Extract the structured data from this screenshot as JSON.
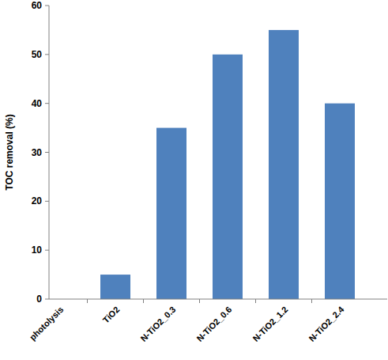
{
  "chart_data": {
    "type": "bar",
    "y_label": "TOC removal (%)",
    "categories": [
      "photolysis",
      "TiO2",
      "N-TiO2_0.3",
      "N-TiO2_0.6",
      "N-TiO2_1.2",
      "N-TiO2_2.4"
    ],
    "values": [
      0,
      5,
      35,
      50,
      55,
      40
    ],
    "color": "#4f81bd",
    "ylim": [
      0,
      60
    ],
    "yticks": [
      0,
      10,
      20,
      30,
      40,
      50,
      60
    ],
    "grid": false
  }
}
